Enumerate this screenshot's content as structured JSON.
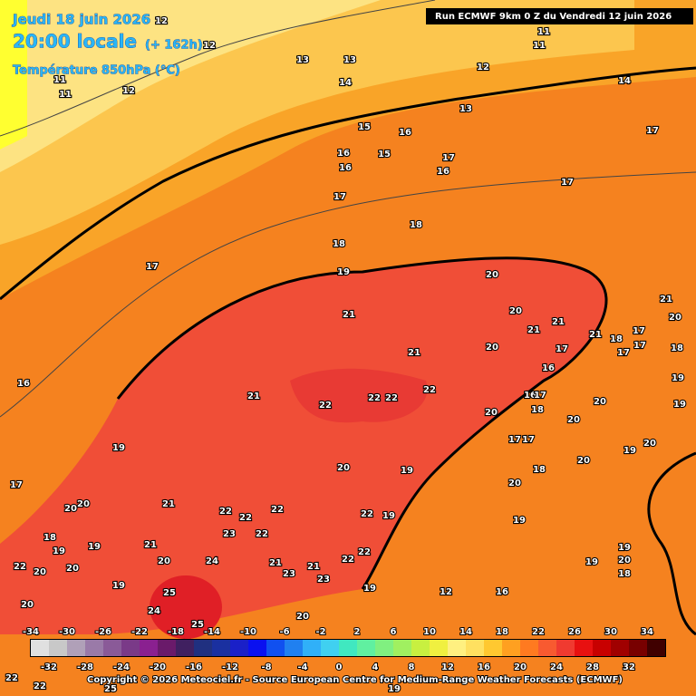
{
  "header": {
    "date": "Jeudi 18 juin 2026",
    "time": "20:00 locale",
    "lead": "(+ 162h)",
    "variable": "Température 850hPa (°C)",
    "run": "Run ECMWF 9km 0 Z du Vendredi 12 juin 2026"
  },
  "map": {
    "labels": [
      12,
      12,
      11,
      11,
      12,
      13,
      13,
      12,
      11,
      11,
      14,
      14,
      13,
      15,
      16,
      17,
      16,
      17,
      16,
      16,
      15,
      17,
      17,
      18,
      18,
      19,
      20,
      17,
      16,
      21,
      21,
      20,
      21,
      21,
      20,
      22,
      22,
      22,
      22,
      21,
      20,
      19,
      20,
      19,
      18,
      20,
      20,
      19,
      20,
      19,
      18,
      21,
      20,
      20,
      17,
      22,
      22,
      22,
      23,
      22,
      22,
      19,
      19,
      24,
      21,
      20,
      21,
      23,
      21,
      22,
      22,
      23,
      19,
      20,
      25,
      24,
      25,
      19,
      18,
      19,
      19,
      20,
      22,
      20,
      20,
      12,
      16,
      19,
      19,
      20,
      18,
      20,
      20,
      18,
      17,
      17,
      17,
      16,
      16,
      17,
      18,
      17,
      17,
      17,
      21,
      20,
      19,
      21,
      22,
      22,
      25,
      19,
      22
    ]
  },
  "scale": {
    "top_labels": [
      -34,
      -30,
      -26,
      -22,
      -18,
      -14,
      -10,
      -6,
      -2,
      2,
      6,
      10,
      14,
      18,
      22,
      26,
      30,
      34
    ],
    "bottom_labels": [
      -32,
      -28,
      -24,
      -20,
      -16,
      -12,
      -8,
      -4,
      0,
      4,
      8,
      12,
      16,
      20,
      24,
      28,
      32
    ],
    "colors": [
      "#e0e0e0",
      "#c8c8c8",
      "#b0a0b8",
      "#9a7aa8",
      "#8a5a98",
      "#7a3a88",
      "#8a2090",
      "#6a1a6a",
      "#402060",
      "#203080",
      "#1a30a0",
      "#1a20c8",
      "#0a10f0",
      "#1050f0",
      "#2080f0",
      "#30b0f8",
      "#40d0f0",
      "#40e8c0",
      "#60f0a0",
      "#80f080",
      "#a0f060",
      "#c8f040",
      "#f0f040",
      "#fff080",
      "#ffe060",
      "#ffc830",
      "#ffa020",
      "#ff7a20",
      "#f85a30",
      "#f03a30",
      "#e81010",
      "#c80000",
      "#a00000",
      "#780000",
      "#400000"
    ]
  },
  "footer": {
    "copyright": "Copyright © 2026 Meteociel.fr - Source European Centre for Medium-Range Weather Forecasts (ECMWF)"
  }
}
